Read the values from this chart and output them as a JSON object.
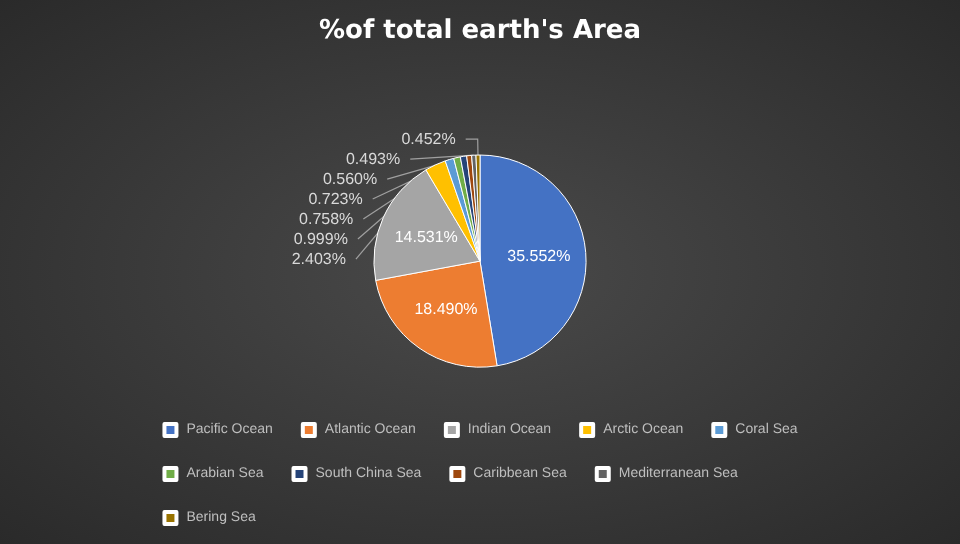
{
  "chart_data": {
    "type": "pie",
    "title": "%of total earth's Area",
    "categories": [
      "Pacific Ocean",
      "Atlantic Ocean",
      "Indian Ocean",
      "Arctic Ocean",
      "Coral Sea",
      "Arabian Sea",
      "South China Sea",
      "Caribbean Sea",
      "Mediterranean Sea",
      "Bering Sea"
    ],
    "values": [
      35.552,
      18.49,
      14.531,
      2.403,
      0.999,
      0.758,
      0.723,
      0.56,
      0.493,
      0.452
    ],
    "value_labels": [
      "35.552%",
      "18.490%",
      "14.531%",
      "2.403%",
      "0.999%",
      "0.758%",
      "0.723%",
      "0.560%",
      "0.493%",
      "0.452%"
    ],
    "colors": [
      "#4472c4",
      "#ed7d31",
      "#a5a5a5",
      "#ffc000",
      "#5b9bd5",
      "#70ad47",
      "#264478",
      "#9e480e",
      "#636363",
      "#997300"
    ],
    "legend": "bottom"
  }
}
